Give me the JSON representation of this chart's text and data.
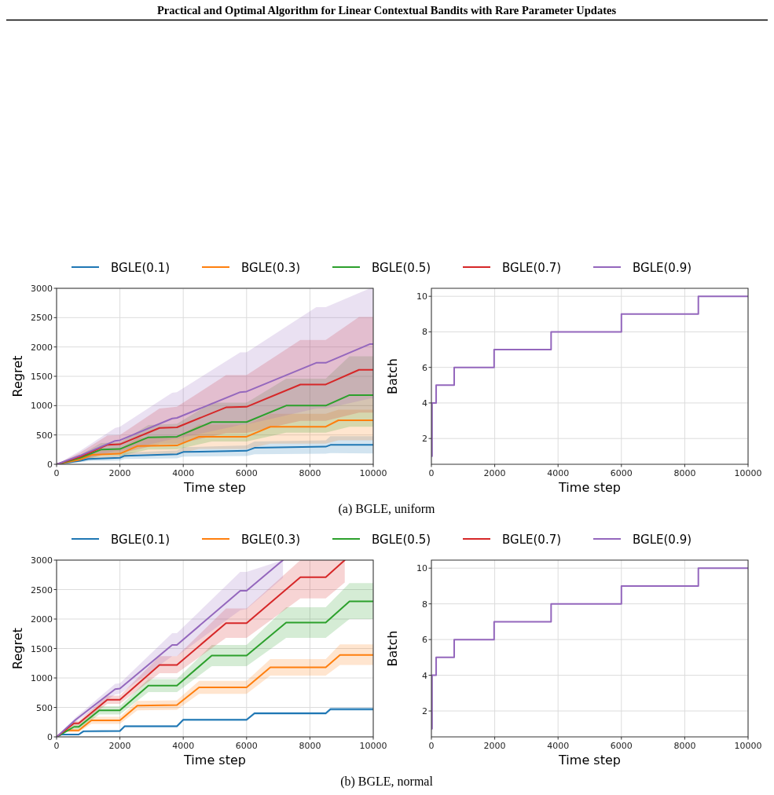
{
  "chart_data": [
    {
      "type": "line",
      "title": "Practical and Optimal Algorithm for Linear Contextual Bandits with Rare Parameter Updates",
      "annotations": [
        "(a) BGLE, uniform"
      ],
      "xlabel": "Time step",
      "ylabel": "Regret",
      "xlim": [
        0,
        10000
      ],
      "ylim": [
        0,
        3000
      ],
      "xticks": [
        0,
        2000,
        4000,
        6000,
        8000,
        10000
      ],
      "yticks": [
        0,
        500,
        1000,
        1500,
        2000,
        2500,
        3000
      ],
      "grid": true,
      "legend": "top",
      "series": [
        {
          "name": "BGLE(0.1)",
          "color": "#1f77b4",
          "x": [
            0,
            750,
            1000,
            2000,
            2150,
            3800,
            4000,
            6000,
            6250,
            8500,
            8650,
            10000
          ],
          "values": [
            0,
            60,
            90,
            110,
            145,
            170,
            210,
            230,
            280,
            300,
            330,
            330
          ],
          "lower": [
            0,
            35,
            55,
            65,
            90,
            100,
            130,
            140,
            170,
            180,
            190,
            185
          ],
          "upper": [
            0,
            85,
            125,
            150,
            200,
            235,
            290,
            320,
            390,
            410,
            480,
            480
          ]
        },
        {
          "name": "BGLE(0.3)",
          "color": "#ff7f0e",
          "x": [
            0,
            750,
            1100,
            2000,
            2550,
            3800,
            4500,
            6000,
            6750,
            8500,
            8900,
            10000
          ],
          "values": [
            0,
            80,
            160,
            180,
            310,
            320,
            470,
            470,
            640,
            640,
            750,
            750
          ],
          "lower": [
            0,
            45,
            90,
            100,
            170,
            175,
            260,
            260,
            350,
            350,
            410,
            410
          ],
          "upper": [
            0,
            115,
            230,
            260,
            450,
            465,
            680,
            680,
            860,
            860,
            930,
            930
          ]
        },
        {
          "name": "BGLE(0.5)",
          "color": "#2ca02c",
          "x": [
            0,
            750,
            1400,
            2000,
            2900,
            3800,
            4900,
            6000,
            7250,
            8500,
            9250,
            10000
          ],
          "values": [
            0,
            110,
            250,
            260,
            460,
            470,
            720,
            720,
            1000,
            1000,
            1180,
            1180
          ],
          "lower": [
            0,
            60,
            140,
            145,
            250,
            255,
            390,
            390,
            540,
            540,
            640,
            640
          ],
          "upper": [
            0,
            160,
            360,
            375,
            670,
            690,
            1050,
            1050,
            1460,
            1460,
            1840,
            1840
          ]
        },
        {
          "name": "BGLE(0.7)",
          "color": "#d62728",
          "x": [
            0,
            750,
            1600,
            2000,
            3250,
            3800,
            5350,
            6000,
            7700,
            8500,
            9550,
            10000
          ],
          "values": [
            0,
            130,
            330,
            340,
            620,
            630,
            970,
            980,
            1360,
            1360,
            1610,
            1610
          ],
          "lower": [
            0,
            70,
            180,
            185,
            340,
            345,
            530,
            535,
            740,
            740,
            880,
            880
          ],
          "upper": [
            0,
            200,
            490,
            500,
            950,
            980,
            1520,
            1520,
            2120,
            2120,
            2510,
            2510
          ]
        },
        {
          "name": "BGLE(0.9)",
          "color": "#9467bd",
          "x": [
            0,
            750,
            1850,
            2000,
            3650,
            3800,
            5800,
            6000,
            8200,
            8500,
            9900,
            10000
          ],
          "values": [
            0,
            150,
            400,
            410,
            780,
            790,
            1230,
            1240,
            1730,
            1730,
            2050,
            2050
          ],
          "lower": [
            0,
            80,
            220,
            225,
            430,
            435,
            670,
            680,
            950,
            950,
            1120,
            1120
          ],
          "upper": [
            0,
            230,
            620,
            640,
            1220,
            1230,
            1910,
            1910,
            2680,
            2680,
            3000,
            3000
          ]
        }
      ]
    },
    {
      "type": "step",
      "xlabel": "Time step",
      "ylabel": "Batch",
      "xlim": [
        0,
        10000
      ],
      "ylim": [
        0.55,
        10.45
      ],
      "xticks": [
        0,
        2000,
        4000,
        6000,
        8000,
        10000
      ],
      "yticks": [
        2,
        4,
        6,
        8,
        10
      ],
      "grid": true,
      "series": [
        {
          "color": "#9467bd",
          "x": [
            0,
            20,
            150,
            720,
            1980,
            3780,
            6000,
            8430,
            10000
          ],
          "values": [
            1,
            4,
            5,
            6,
            7,
            8,
            9,
            10,
            10
          ]
        }
      ]
    },
    {
      "type": "line",
      "annotations": [
        "(b) BGLE, normal"
      ],
      "xlabel": "Time step",
      "ylabel": "Regret",
      "xlim": [
        0,
        10000
      ],
      "ylim": [
        0,
        3000
      ],
      "xticks": [
        0,
        2000,
        4000,
        6000,
        8000,
        10000
      ],
      "yticks": [
        0,
        500,
        1000,
        1500,
        2000,
        2500,
        3000
      ],
      "grid": true,
      "legend": "top",
      "series": [
        {
          "name": "BGLE(0.1)",
          "color": "#1f77b4",
          "x": [
            0,
            150,
            700,
            850,
            2000,
            2150,
            3800,
            4000,
            6000,
            6250,
            8500,
            8650,
            10000
          ],
          "values": [
            0,
            40,
            40,
            95,
            100,
            180,
            180,
            290,
            290,
            400,
            400,
            470,
            470
          ],
          "lower": [
            0,
            25,
            25,
            75,
            80,
            160,
            160,
            270,
            270,
            375,
            375,
            440,
            440
          ],
          "upper": [
            0,
            55,
            55,
            115,
            120,
            200,
            200,
            310,
            310,
            425,
            425,
            500,
            500
          ]
        },
        {
          "name": "BGLE(0.3)",
          "color": "#ff7f0e",
          "x": [
            0,
            300,
            700,
            1100,
            2000,
            2550,
            3800,
            4500,
            6000,
            6750,
            8500,
            8950,
            10000
          ],
          "values": [
            0,
            110,
            110,
            280,
            280,
            530,
            540,
            840,
            840,
            1180,
            1180,
            1390,
            1390
          ],
          "lower": [
            0,
            80,
            80,
            220,
            220,
            450,
            460,
            730,
            730,
            1040,
            1040,
            1220,
            1220
          ],
          "upper": [
            0,
            140,
            140,
            340,
            340,
            610,
            620,
            950,
            950,
            1320,
            1320,
            1570,
            1570
          ]
        },
        {
          "name": "BGLE(0.5)",
          "color": "#2ca02c",
          "x": [
            0,
            550,
            700,
            1350,
            2000,
            2900,
            3800,
            4900,
            6000,
            7250,
            8500,
            9250,
            10000
          ],
          "values": [
            0,
            170,
            170,
            450,
            450,
            870,
            870,
            1380,
            1380,
            1940,
            1940,
            2300,
            2300
          ],
          "lower": [
            0,
            130,
            130,
            380,
            380,
            760,
            760,
            1200,
            1200,
            1680,
            1680,
            2000,
            2000
          ],
          "upper": [
            0,
            210,
            210,
            520,
            520,
            980,
            980,
            1560,
            1560,
            2200,
            2200,
            2610,
            2610
          ]
        },
        {
          "name": "BGLE(0.7)",
          "color": "#d62728",
          "x": [
            0,
            550,
            700,
            1600,
            2000,
            3250,
            3800,
            5350,
            6000,
            7700,
            8500,
            9100
          ],
          "values": [
            0,
            230,
            230,
            630,
            630,
            1220,
            1220,
            1930,
            1930,
            2710,
            2710,
            3000
          ],
          "lower": [
            0,
            190,
            190,
            560,
            560,
            1080,
            1080,
            1680,
            1680,
            2350,
            2350,
            2620
          ],
          "upper": [
            0,
            270,
            270,
            700,
            700,
            1370,
            1370,
            2180,
            2180,
            3000,
            3000,
            3000
          ]
        },
        {
          "name": "BGLE(0.9)",
          "color": "#9467bd",
          "x": [
            0,
            600,
            1850,
            2000,
            3650,
            3800,
            5800,
            6000,
            7150
          ],
          "values": [
            0,
            290,
            810,
            820,
            1560,
            1560,
            2480,
            2480,
            3000
          ],
          "lower": [
            0,
            250,
            720,
            730,
            1370,
            1370,
            2150,
            2170,
            2700
          ],
          "upper": [
            0,
            330,
            900,
            910,
            1760,
            1760,
            2800,
            2800,
            3000
          ]
        }
      ]
    },
    {
      "type": "step",
      "xlabel": "Time step",
      "ylabel": "Batch",
      "xlim": [
        0,
        10000
      ],
      "ylim": [
        0.55,
        10.45
      ],
      "xticks": [
        0,
        2000,
        4000,
        6000,
        8000,
        10000
      ],
      "yticks": [
        2,
        4,
        6,
        8,
        10
      ],
      "grid": true,
      "series": [
        {
          "color": "#9467bd",
          "x": [
            0,
            20,
            150,
            720,
            1980,
            3780,
            6000,
            8430,
            10000
          ],
          "values": [
            1,
            4,
            5,
            6,
            7,
            8,
            9,
            10,
            10
          ]
        }
      ]
    }
  ]
}
